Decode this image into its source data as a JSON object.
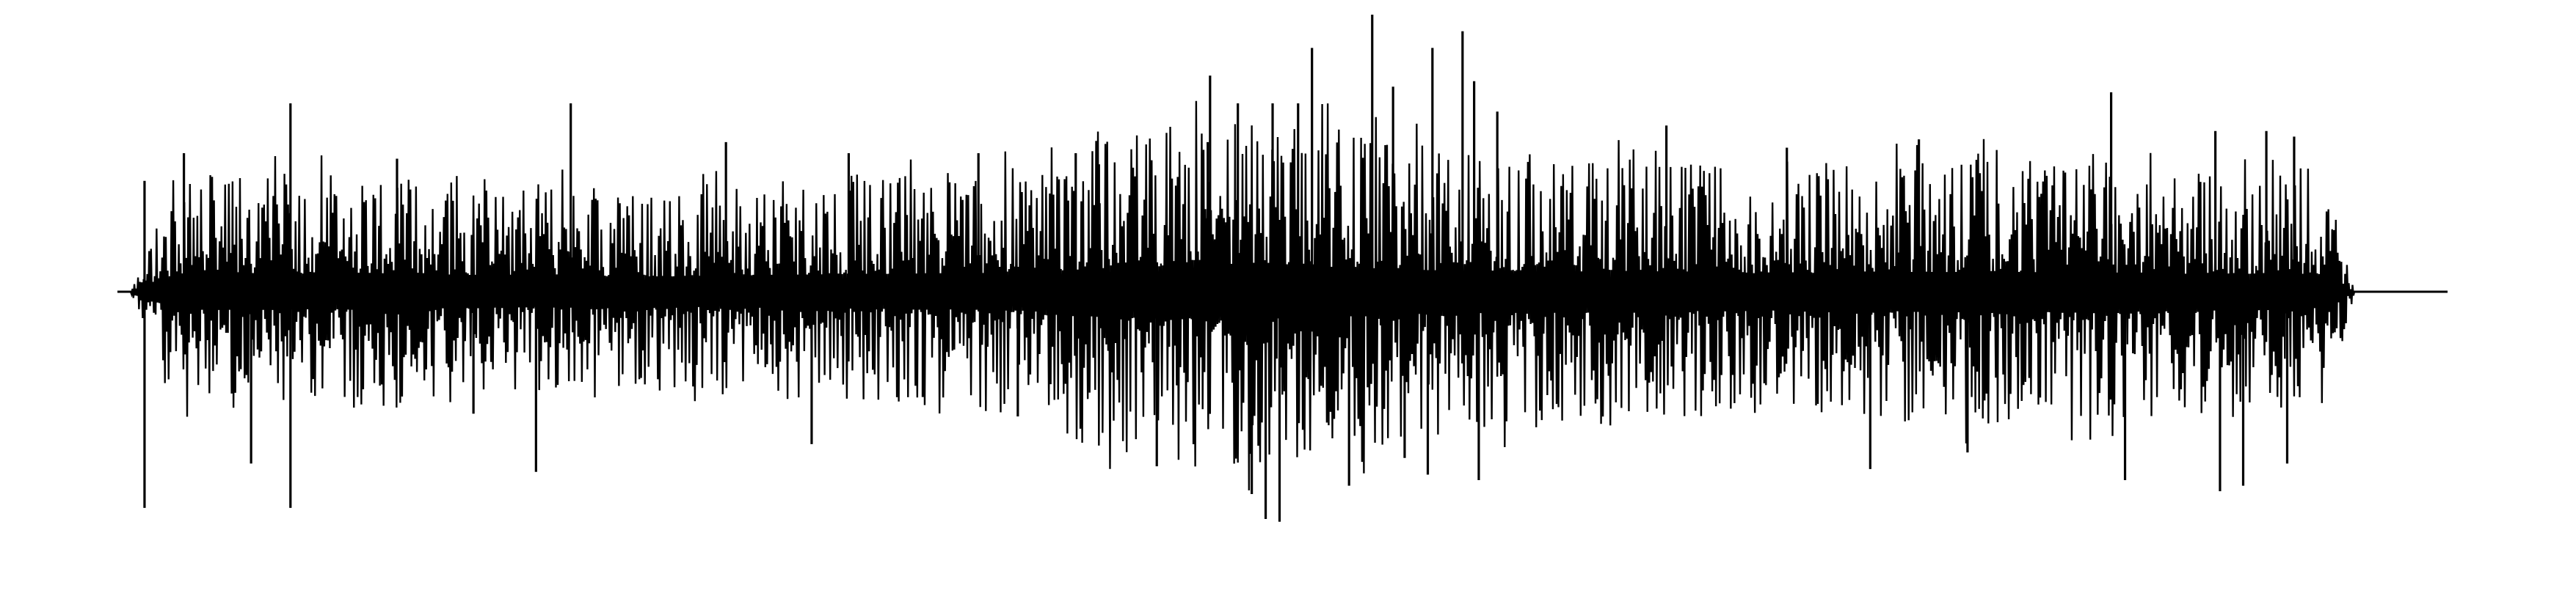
{
  "chart_data": {
    "type": "line",
    "title": "",
    "xlabel": "",
    "ylabel": "",
    "grid": false,
    "legend": "none",
    "axes_visible": false,
    "line_color": "#000000",
    "background": "#ffffff",
    "x_range": [
      0,
      1
    ],
    "ylim": [
      -1,
      1
    ],
    "baseline": 0,
    "signal_end_x": 0.96,
    "series": [
      {
        "envelope_x": [
          0.0,
          0.02,
          0.05,
          0.1,
          0.15,
          0.2,
          0.22,
          0.3,
          0.35,
          0.38,
          0.4,
          0.43,
          0.46,
          0.49,
          0.5,
          0.53,
          0.56,
          0.6,
          0.65,
          0.7,
          0.75,
          0.8,
          0.85,
          0.88,
          0.9,
          0.93,
          0.95,
          0.96,
          1.0
        ],
        "envelope_top": [
          0.0,
          0.44,
          0.42,
          0.45,
          0.4,
          0.38,
          0.36,
          0.42,
          0.44,
          0.45,
          0.5,
          0.6,
          0.62,
          0.62,
          0.62,
          0.58,
          0.52,
          0.5,
          0.48,
          0.44,
          0.46,
          0.48,
          0.46,
          0.44,
          0.42,
          0.42,
          0.36,
          0.0,
          0.0
        ],
        "envelope_bottom": [
          0.0,
          -0.44,
          -0.42,
          -0.42,
          -0.38,
          -0.36,
          -0.35,
          -0.4,
          -0.42,
          -0.44,
          -0.5,
          -0.62,
          -0.64,
          -0.64,
          -0.62,
          -0.58,
          -0.52,
          -0.5,
          -0.48,
          -0.44,
          -0.46,
          -0.5,
          -0.48,
          -0.46,
          -0.42,
          -0.42,
          -0.36,
          0.0,
          0.0
        ],
        "peaks": [
          {
            "x": 0.006,
            "y": 0.4
          },
          {
            "x": 0.006,
            "y": -0.78
          },
          {
            "x": 0.023,
            "y": 0.5
          },
          {
            "x": 0.052,
            "y": -0.62
          },
          {
            "x": 0.069,
            "y": 0.68
          },
          {
            "x": 0.069,
            "y": -0.78
          },
          {
            "x": 0.115,
            "y": 0.48
          },
          {
            "x": 0.148,
            "y": -0.44
          },
          {
            "x": 0.175,
            "y": -0.65
          },
          {
            "x": 0.19,
            "y": 0.68
          },
          {
            "x": 0.257,
            "y": 0.54
          },
          {
            "x": 0.294,
            "y": -0.55
          },
          {
            "x": 0.31,
            "y": 0.5
          },
          {
            "x": 0.342,
            "y": -0.38
          },
          {
            "x": 0.366,
            "y": 0.5
          },
          {
            "x": 0.383,
            "y": -0.45
          },
          {
            "x": 0.408,
            "y": 0.5
          },
          {
            "x": 0.418,
            "y": 0.46
          },
          {
            "x": 0.443,
            "y": -0.63
          },
          {
            "x": 0.465,
            "y": 0.54
          },
          {
            "x": 0.466,
            "y": 0.78
          },
          {
            "x": 0.478,
            "y": 0.68
          },
          {
            "x": 0.484,
            "y": -0.73
          },
          {
            "x": 0.49,
            "y": -0.82
          },
          {
            "x": 0.493,
            "y": 0.68
          },
          {
            "x": 0.496,
            "y": -0.83
          },
          {
            "x": 0.504,
            "y": 0.68
          },
          {
            "x": 0.51,
            "y": 0.88
          },
          {
            "x": 0.526,
            "y": -0.7
          },
          {
            "x": 0.536,
            "y": 1.0
          },
          {
            "x": 0.545,
            "y": 0.74
          },
          {
            "x": 0.55,
            "y": -0.6
          },
          {
            "x": 0.56,
            "y": -0.66
          },
          {
            "x": 0.562,
            "y": 0.88
          },
          {
            "x": 0.575,
            "y": 0.94
          },
          {
            "x": 0.58,
            "y": 0.76
          },
          {
            "x": 0.582,
            "y": -0.68
          },
          {
            "x": 0.59,
            "y": 0.65
          },
          {
            "x": 0.663,
            "y": 0.6
          },
          {
            "x": 0.715,
            "y": 0.52
          },
          {
            "x": 0.751,
            "y": -0.64
          },
          {
            "x": 0.772,
            "y": 0.55
          },
          {
            "x": 0.793,
            "y": -0.58
          },
          {
            "x": 0.855,
            "y": 0.72
          },
          {
            "x": 0.861,
            "y": -0.68
          },
          {
            "x": 0.902,
            "y": -0.72
          },
          {
            "x": 0.9,
            "y": 0.58
          },
          {
            "x": 0.912,
            "y": -0.7
          },
          {
            "x": 0.922,
            "y": 0.58
          },
          {
            "x": 0.931,
            "y": -0.62
          },
          {
            "x": 0.934,
            "y": 0.56
          }
        ],
        "sample_count": 2400
      }
    ]
  }
}
